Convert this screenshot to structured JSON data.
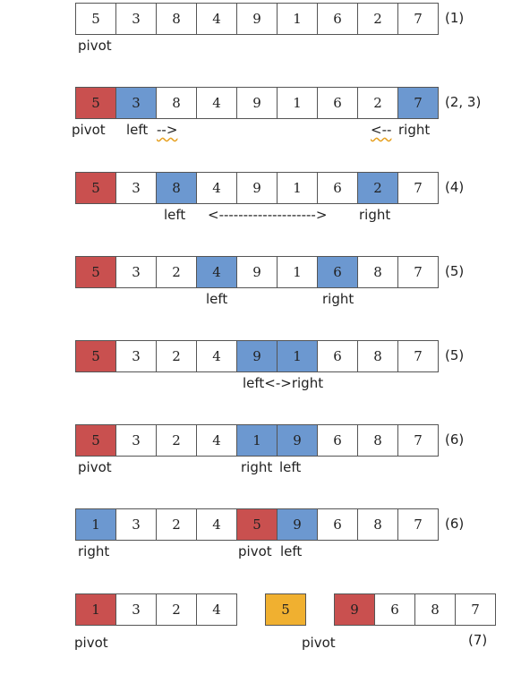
{
  "colors": {
    "pivot": "#c9504f",
    "pointer": "#6c98d0",
    "final_pivot": "#f0b030"
  },
  "rows": [
    {
      "cells": [
        {
          "v": "5"
        },
        {
          "v": "3"
        },
        {
          "v": "8"
        },
        {
          "v": "4"
        },
        {
          "v": "9"
        },
        {
          "v": "1"
        },
        {
          "v": "6"
        },
        {
          "v": "2"
        },
        {
          "v": "7"
        }
      ],
      "step": "(1)",
      "labels": [
        "pivot"
      ]
    },
    {
      "cells": [
        {
          "v": "5",
          "c": "red"
        },
        {
          "v": "3",
          "c": "blue"
        },
        {
          "v": "8"
        },
        {
          "v": "4"
        },
        {
          "v": "9"
        },
        {
          "v": "1"
        },
        {
          "v": "6"
        },
        {
          "v": "2"
        },
        {
          "v": "7",
          "c": "blue"
        }
      ],
      "step": "(2, 3)",
      "labels": [
        "pivot",
        "left",
        "-->",
        "<--",
        "right"
      ]
    },
    {
      "cells": [
        {
          "v": "5",
          "c": "red"
        },
        {
          "v": "3"
        },
        {
          "v": "8",
          "c": "blue"
        },
        {
          "v": "4"
        },
        {
          "v": "9"
        },
        {
          "v": "1"
        },
        {
          "v": "6"
        },
        {
          "v": "2",
          "c": "blue"
        },
        {
          "v": "7"
        }
      ],
      "step": "(4)",
      "labels": [
        "left",
        "<-------------------->",
        "right"
      ]
    },
    {
      "cells": [
        {
          "v": "5",
          "c": "red"
        },
        {
          "v": "3"
        },
        {
          "v": "2"
        },
        {
          "v": "4",
          "c": "blue"
        },
        {
          "v": "9"
        },
        {
          "v": "1"
        },
        {
          "v": "6",
          "c": "blue"
        },
        {
          "v": "8"
        },
        {
          "v": "7"
        }
      ],
      "step": "(5)",
      "labels": [
        "left",
        "right"
      ]
    },
    {
      "cells": [
        {
          "v": "5",
          "c": "red"
        },
        {
          "v": "3"
        },
        {
          "v": "2"
        },
        {
          "v": "4"
        },
        {
          "v": "9",
          "c": "blue"
        },
        {
          "v": "1",
          "c": "blue"
        },
        {
          "v": "6"
        },
        {
          "v": "8"
        },
        {
          "v": "7"
        }
      ],
      "step": "(5)",
      "labels": [
        "left<->right"
      ]
    },
    {
      "cells": [
        {
          "v": "5",
          "c": "red"
        },
        {
          "v": "3"
        },
        {
          "v": "2"
        },
        {
          "v": "4"
        },
        {
          "v": "1",
          "c": "blue"
        },
        {
          "v": "9",
          "c": "blue"
        },
        {
          "v": "6"
        },
        {
          "v": "8"
        },
        {
          "v": "7"
        }
      ],
      "step": "(6)",
      "labels": [
        "pivot",
        "right",
        "left"
      ]
    },
    {
      "cells": [
        {
          "v": "1",
          "c": "blue"
        },
        {
          "v": "3"
        },
        {
          "v": "2"
        },
        {
          "v": "4"
        },
        {
          "v": "5",
          "c": "red"
        },
        {
          "v": "9",
          "c": "blue"
        },
        {
          "v": "6"
        },
        {
          "v": "8"
        },
        {
          "v": "7"
        }
      ],
      "step": "(6)",
      "labels": [
        "right",
        "pivot",
        "left"
      ]
    }
  ],
  "final_row": {
    "left_group": [
      {
        "v": "1",
        "c": "red"
      },
      {
        "v": "3"
      },
      {
        "v": "2"
      },
      {
        "v": "4"
      }
    ],
    "middle": [
      {
        "v": "5",
        "c": "orange"
      }
    ],
    "right_group": [
      {
        "v": "9",
        "c": "red"
      },
      {
        "v": "6"
      },
      {
        "v": "8"
      },
      {
        "v": "7"
      }
    ],
    "step": "(7)",
    "labels": [
      "pivot",
      "pivot"
    ]
  }
}
